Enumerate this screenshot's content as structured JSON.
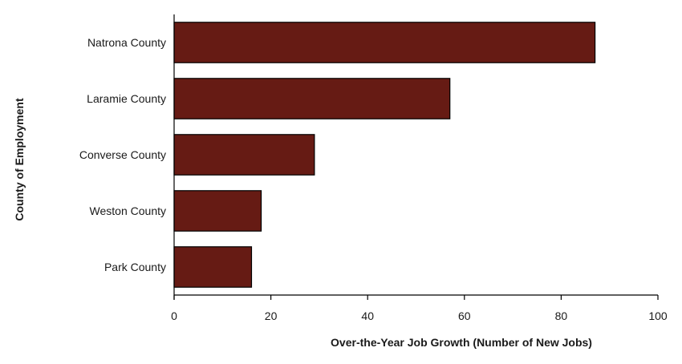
{
  "chart_data": {
    "type": "bar",
    "orientation": "horizontal",
    "categories": [
      "Natrona County",
      "Laramie County",
      "Converse County",
      "Weston County",
      "Park County"
    ],
    "values": [
      87,
      57,
      29,
      18,
      16
    ],
    "xlabel": "Over-the-Year Job Growth (Number of New Jobs)",
    "ylabel": "County of Employment",
    "xlim": [
      0,
      100
    ],
    "xticks": [
      0,
      20,
      40,
      60,
      80,
      100
    ],
    "grid": false,
    "legend": "none",
    "bar_color": "#661b14",
    "bar_edge_color": "#000000"
  }
}
